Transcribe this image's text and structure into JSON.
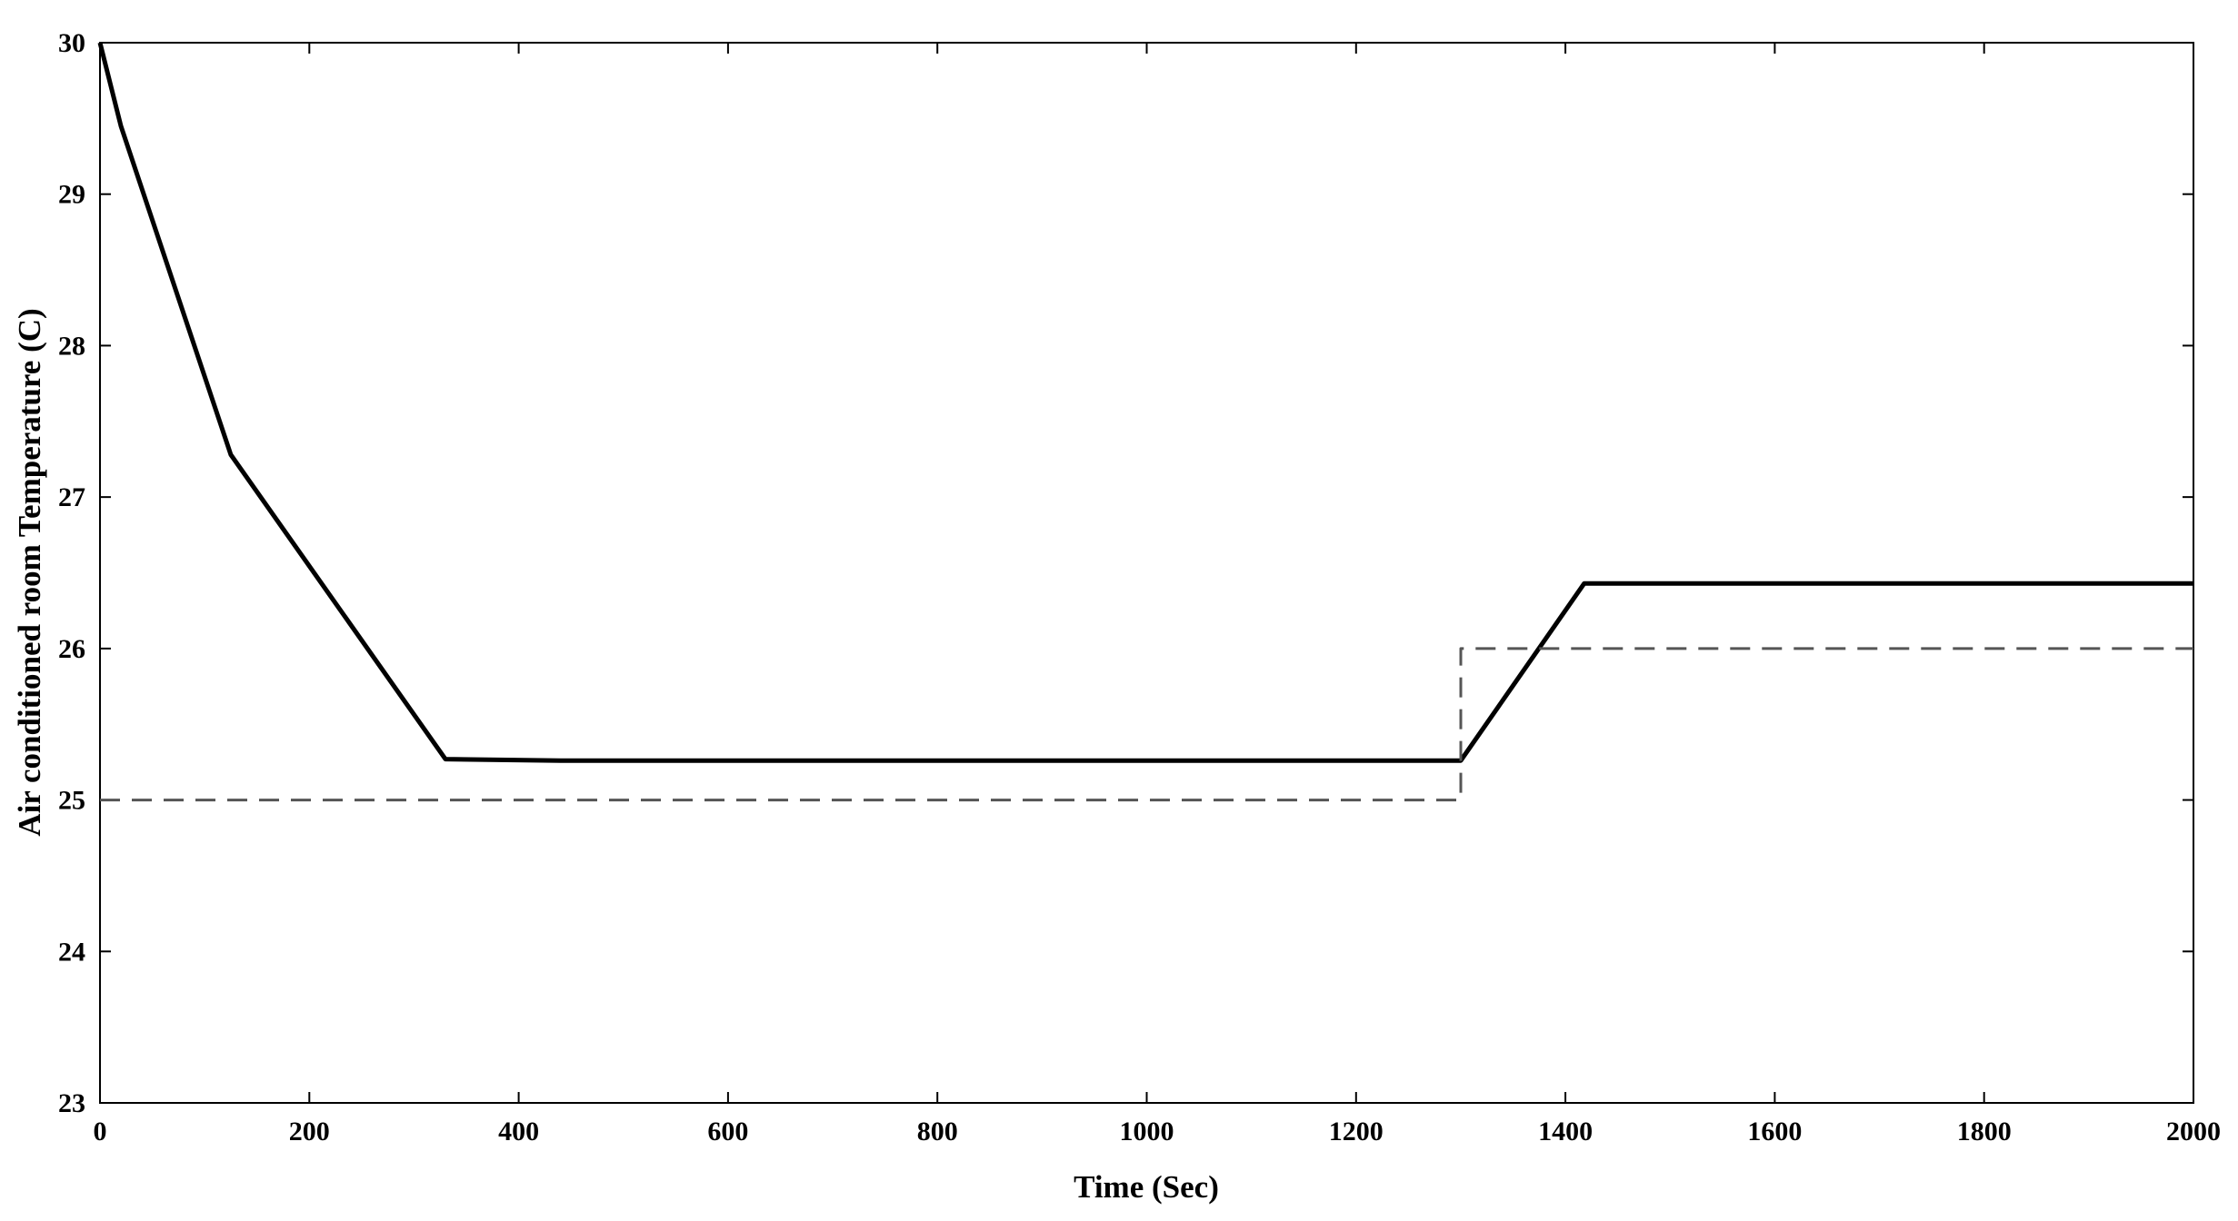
{
  "chart_data": {
    "type": "line",
    "title": "",
    "xlabel": "Time (Sec)",
    "ylabel": "Air conditioned room Temperature (C)",
    "xlim": [
      0,
      2000
    ],
    "ylim": [
      23,
      30
    ],
    "xticks": [
      0,
      200,
      400,
      600,
      800,
      1000,
      1200,
      1400,
      1600,
      1800,
      2000
    ],
    "yticks": [
      23,
      24,
      25,
      26,
      27,
      28,
      29,
      30
    ],
    "grid": false,
    "legend": "none",
    "series": [
      {
        "style": "solid",
        "color": "#000000",
        "x": [
          0,
          20,
          125,
          330,
          440,
          800,
          1000,
          1200,
          1300,
          1418,
          1500,
          1800,
          2000
        ],
        "y": [
          30.0,
          29.45,
          27.28,
          25.27,
          25.26,
          25.26,
          25.26,
          25.26,
          25.26,
          26.43,
          26.43,
          26.43,
          26.43
        ]
      },
      {
        "style": "dashed",
        "color": "#555555",
        "x": [
          0,
          1300,
          1300,
          2000
        ],
        "y": [
          25.0,
          25.0,
          26.0,
          26.0
        ]
      }
    ]
  }
}
